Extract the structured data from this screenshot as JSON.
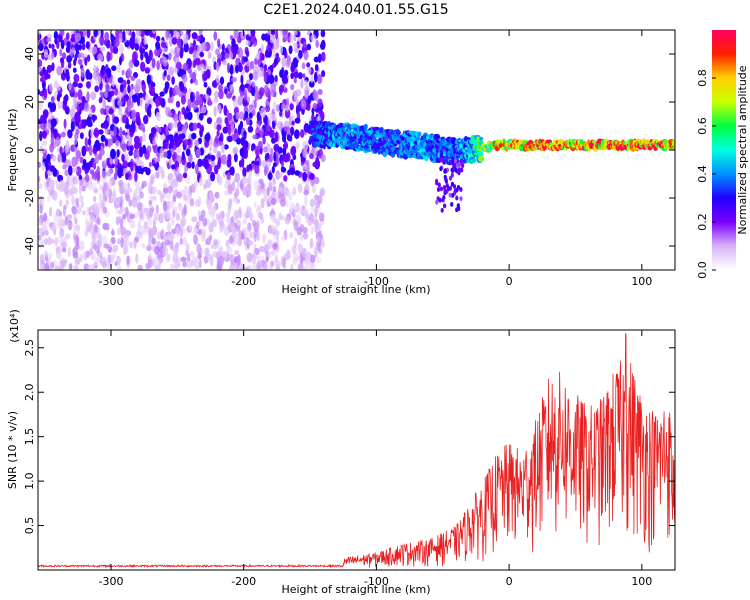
{
  "title": "C2E1.2024.040.01.55.G15",
  "chart_data": [
    {
      "type": "heatmap",
      "xlabel": "Height of straight line (km)",
      "ylabel": "Frequency (Hz)",
      "xlim": [
        -355,
        125
      ],
      "ylim": [
        -50,
        50
      ],
      "x_ticks": [
        -300,
        -200,
        -100,
        0,
        100
      ],
      "y_ticks": [
        -40,
        -20,
        0,
        20,
        40
      ],
      "colorbar": {
        "label": "Normalized spectral amplitude",
        "range": [
          0,
          1
        ],
        "ticks": [
          "0.0",
          "0.2",
          "0.4",
          "0.6",
          "0.8"
        ],
        "colors": [
          "#ffffff",
          "#d8b4f8",
          "#7a00ff",
          "#2000ff",
          "#0090ff",
          "#00ffe0",
          "#00ff40",
          "#c8ff00",
          "#ffd000",
          "#ff2000",
          "#ff0060"
        ]
      },
      "signal_ridge": {
        "x": [
          -150,
          -130,
          -110,
          -90,
          -70,
          -50,
          -40,
          -30,
          -20,
          -10,
          0,
          20,
          40,
          60,
          80,
          100,
          125
        ],
        "frequency": [
          7,
          6,
          5,
          3,
          2,
          0,
          -1,
          0,
          1,
          2,
          2,
          2,
          2,
          2,
          2,
          2,
          2
        ],
        "amplitude": [
          0.35,
          0.45,
          0.45,
          0.4,
          0.45,
          0.45,
          0.4,
          0.5,
          0.7,
          0.85,
          0.9,
          0.95,
          0.95,
          0.95,
          0.95,
          0.95,
          0.95
        ]
      },
      "noise_region": {
        "x_range": [
          -355,
          -140
        ],
        "amplitude": 0.25
      }
    },
    {
      "type": "line",
      "xlabel": "Height of straight line (km)",
      "ylabel": "SNR (10 * v/v)",
      "y_multiplier": "(x10⁴)",
      "xlim": [
        -355,
        125
      ],
      "ylim": [
        0,
        2.7
      ],
      "x_ticks": [
        -300,
        -200,
        -100,
        0,
        100
      ],
      "y_ticks": [
        0.5,
        1.0,
        1.5,
        2.0,
        2.5
      ],
      "line_color": "#e82020",
      "envelope": {
        "x": [
          -355,
          -300,
          -200,
          -140,
          -120,
          -100,
          -80,
          -60,
          -40,
          -30,
          -20,
          -10,
          0,
          10,
          20,
          30,
          40,
          50,
          60,
          70,
          80,
          90,
          100,
          110,
          120,
          125
        ],
        "y": [
          0.05,
          0.05,
          0.05,
          0.06,
          0.15,
          0.2,
          0.3,
          0.35,
          0.5,
          0.75,
          1.0,
          1.3,
          1.45,
          1.35,
          1.7,
          2.2,
          2.25,
          2.0,
          1.85,
          1.95,
          2.3,
          2.45,
          2.0,
          1.8,
          2.0,
          1.2
        ]
      },
      "peak": {
        "x": 88,
        "y": 2.66
      }
    }
  ]
}
